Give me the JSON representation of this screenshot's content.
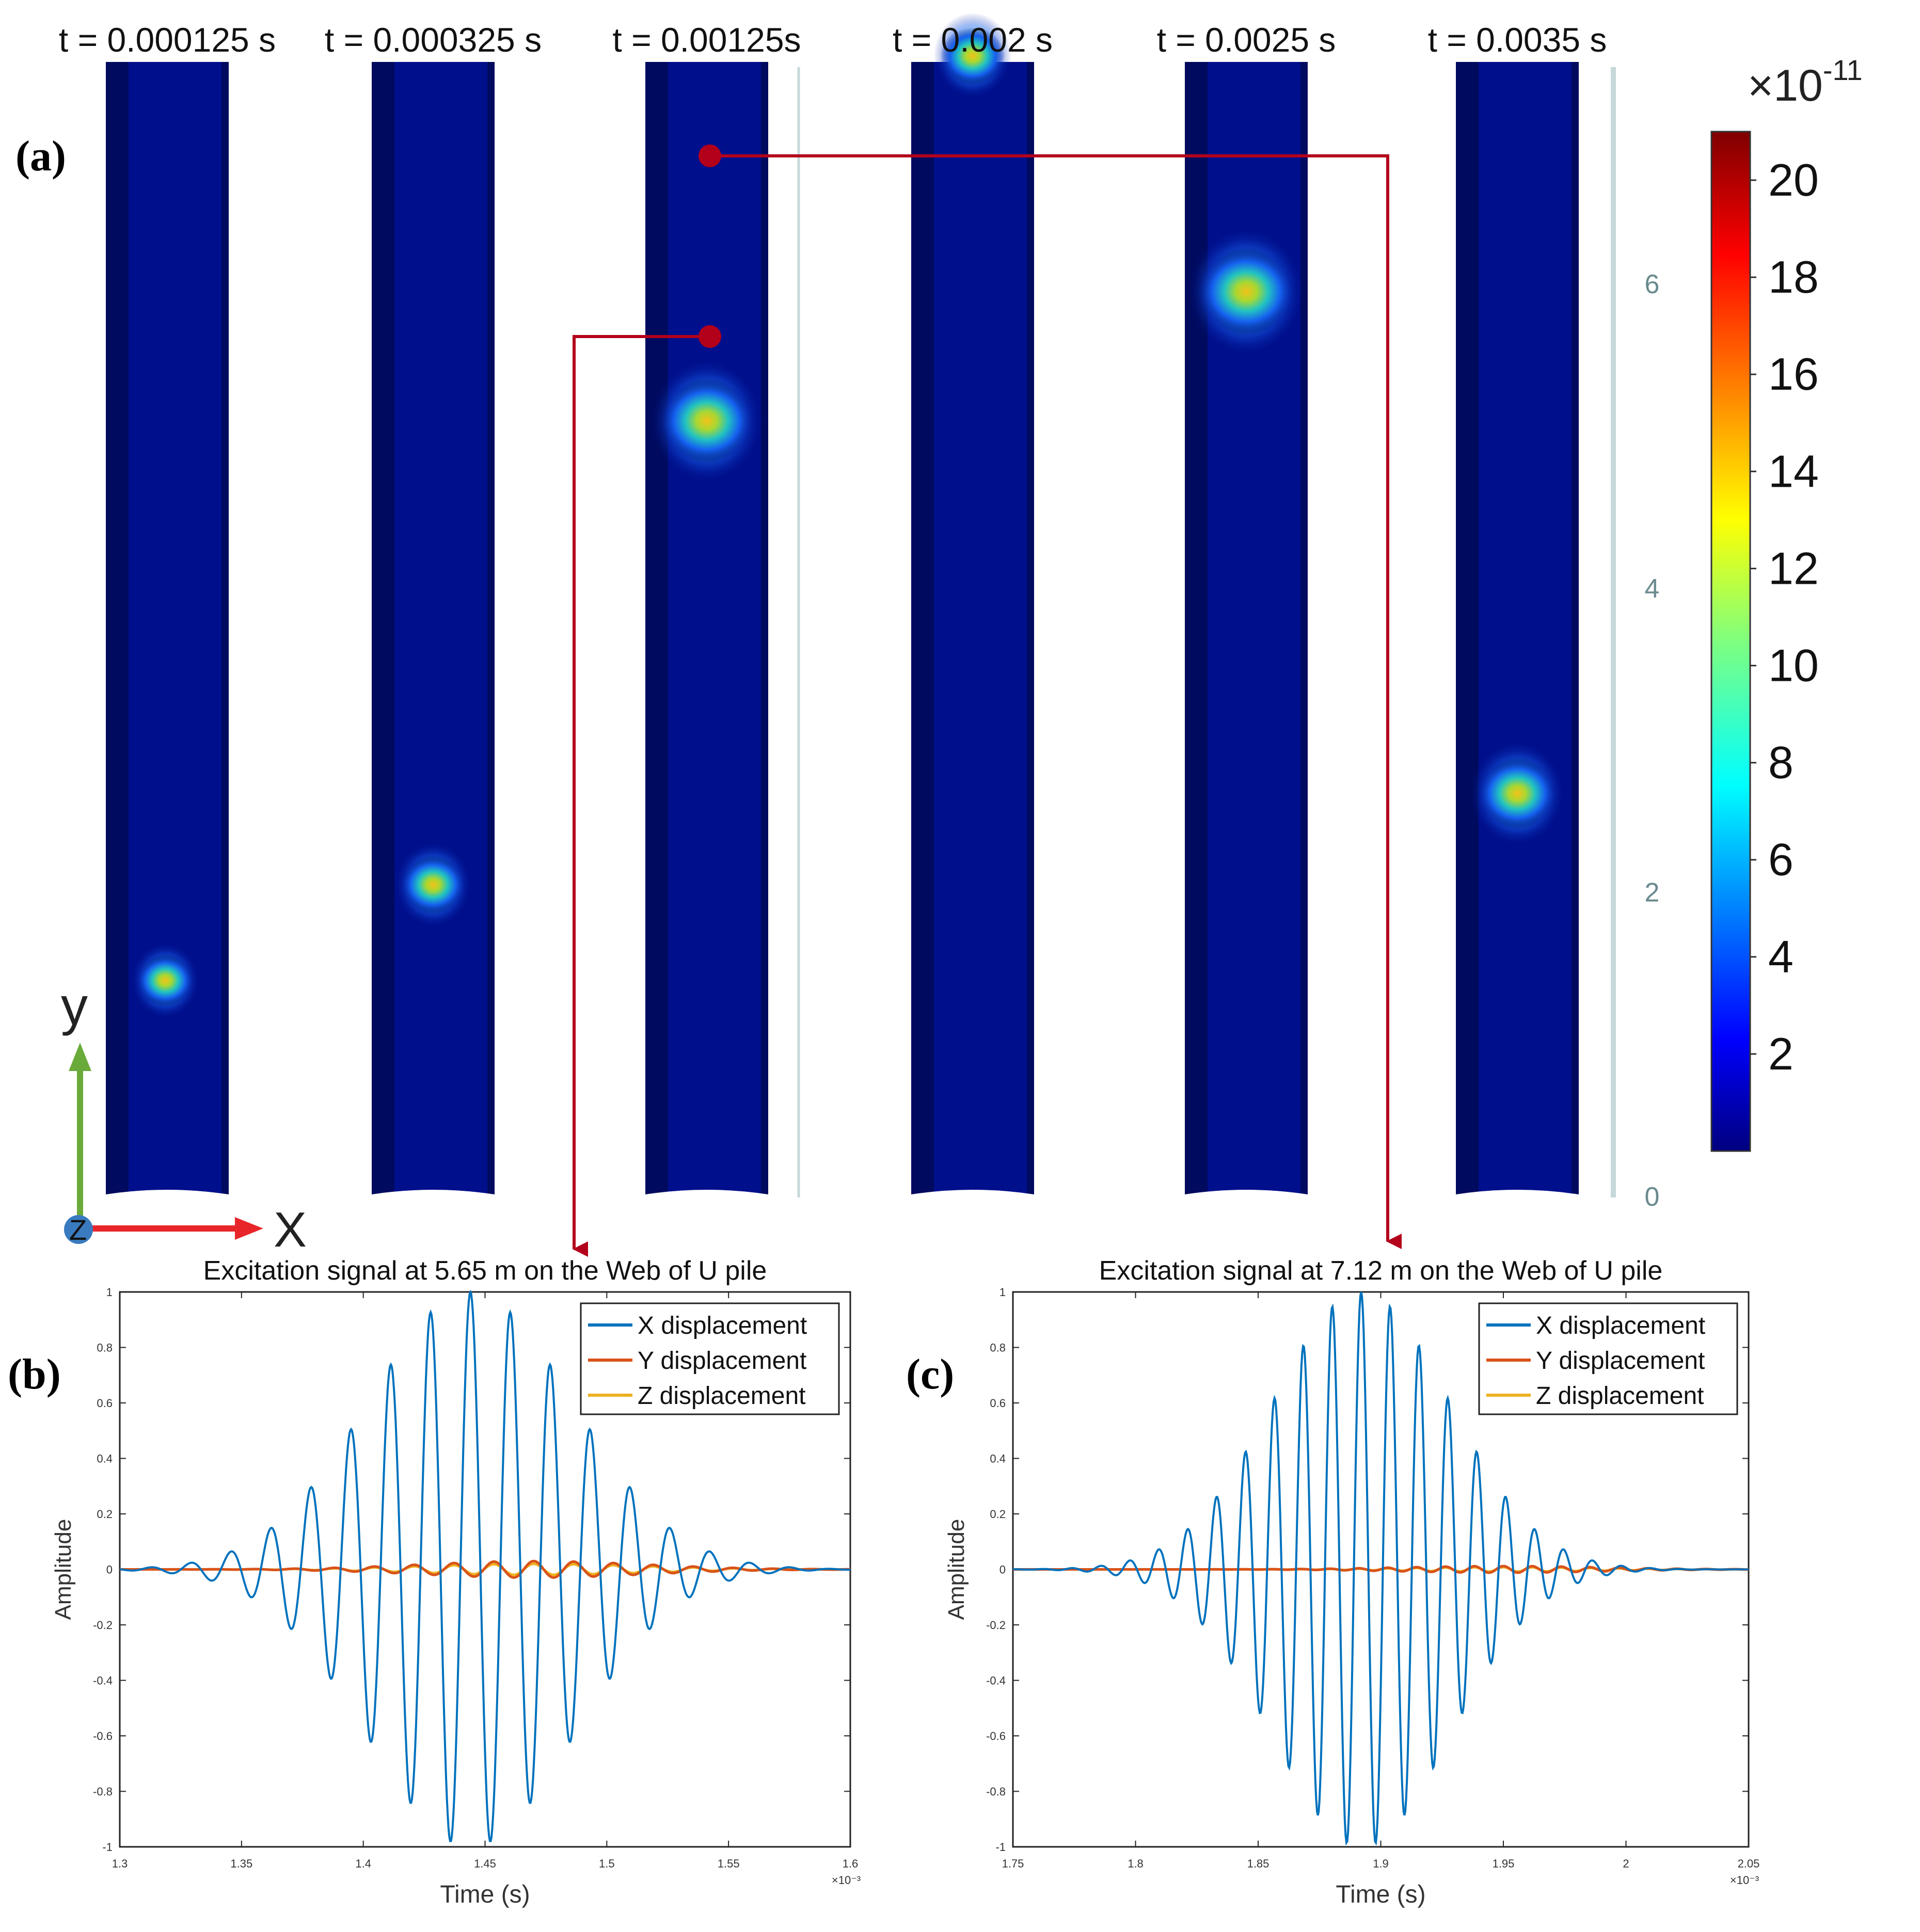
{
  "panel_labels": {
    "a": "(a)",
    "b": "(b)",
    "c": "(c)"
  },
  "snapshots": [
    {
      "time_label": "t = 0.000125 s",
      "spot_y_m": 1.42,
      "spot_scale": 0.8,
      "spot_peak": 12
    },
    {
      "time_label": "t = 0.000325 s",
      "spot_y_m": 2.05,
      "spot_scale": 0.9,
      "spot_peak": 12
    },
    {
      "time_label": "t = 0.00125s",
      "spot_y_m": 5.1,
      "spot_scale": 1.3,
      "spot_peak": 13
    },
    {
      "time_label": "t = 0.002 s",
      "spot_y_m": 7.5,
      "spot_scale": 0.9,
      "spot_peak": 13
    },
    {
      "time_label": "t = 0.0025 s",
      "spot_y_m": 5.95,
      "spot_scale": 1.35,
      "spot_peak": 13
    },
    {
      "time_label": "t = 0.0035 s",
      "spot_y_m": 2.65,
      "spot_scale": 1.1,
      "spot_peak": 12
    }
  ],
  "position_scale": {
    "ticks": [
      "0",
      "2",
      "4",
      "6"
    ],
    "values": [
      0,
      2,
      4,
      6
    ],
    "max": 7.45
  },
  "colorbar": {
    "exponent_label": "×10",
    "exponent_power": "-11",
    "ticks": [
      "2",
      "4",
      "6",
      "8",
      "10",
      "12",
      "14",
      "16",
      "18",
      "20"
    ],
    "values": [
      2,
      4,
      6,
      8,
      10,
      12,
      14,
      16,
      18,
      20
    ],
    "min": 0,
    "max": 21
  },
  "axes_triad": {
    "x": "X",
    "y": "y",
    "z": "Z"
  },
  "colors": {
    "background": "#000f8c",
    "arrow_red": "#b3001b",
    "x_series": "#0072bd",
    "y_series": "#d95319",
    "z_series": "#edb120",
    "triad_y": "#6aaa3a",
    "triad_x": "#e8262a",
    "triad_z": "#3a7bbf"
  },
  "chart_data": [
    {
      "type": "line",
      "title": "Excitation signal at 5.65 m on the Web of U pile",
      "xlabel": "Time (s)",
      "ylabel": "Amplitude",
      "x_multiplier": "×10⁻³",
      "xlim": [
        1.3,
        1.6
      ],
      "ylim": [
        -1,
        1
      ],
      "xticks": [
        1.3,
        1.35,
        1.4,
        1.45,
        1.5,
        1.55,
        1.6
      ],
      "xtick_labels": [
        "1.3",
        "1.35",
        "1.4",
        "1.45",
        "1.5",
        "1.55",
        "1.6"
      ],
      "yticks": [
        -1,
        -0.8,
        -0.6,
        -0.4,
        -0.2,
        0,
        0.2,
        0.4,
        0.6,
        0.8,
        1
      ],
      "ytick_labels": [
        "-1",
        "-0.8",
        "-0.6",
        "-0.4",
        "-0.2",
        "0",
        "0.2",
        "0.4",
        "0.6",
        "0.8",
        "1"
      ],
      "legend": [
        "X displacement",
        "Y displacement",
        "Z displacement"
      ],
      "legend_position": "top-right",
      "series": [
        {
          "name": "X displacement",
          "model": "tone_burst",
          "center": 1.444,
          "period": 0.0164,
          "sigma": 0.042,
          "amplitude": 1.0
        },
        {
          "name": "Y displacement",
          "model": "tone_burst",
          "center": 1.47,
          "period": 0.0164,
          "sigma": 0.045,
          "amplitude": 0.03
        },
        {
          "name": "Z displacement",
          "model": "tone_burst",
          "center": 1.47,
          "period": 0.0164,
          "sigma": 0.045,
          "amplitude": 0.02
        }
      ]
    },
    {
      "type": "line",
      "title": "Excitation signal at 7.12 m on the Web of U pile",
      "xlabel": "Time (s)",
      "ylabel": "Amplitude",
      "x_multiplier": "×10⁻³",
      "xlim": [
        1.75,
        2.05
      ],
      "ylim": [
        -1,
        1
      ],
      "xticks": [
        1.75,
        1.8,
        1.85,
        1.9,
        1.95,
        2.0,
        2.05
      ],
      "xtick_labels": [
        "1.75",
        "1.8",
        "1.85",
        "1.9",
        "1.95",
        "2",
        "2.05"
      ],
      "yticks": [
        -1,
        -0.8,
        -0.6,
        -0.4,
        -0.2,
        0,
        0.2,
        0.4,
        0.6,
        0.8,
        1
      ],
      "ytick_labels": [
        "-1",
        "-0.8",
        "-0.6",
        "-0.4",
        "-0.2",
        "0",
        "0.2",
        "0.4",
        "0.6",
        "0.8",
        "1"
      ],
      "legend": [
        "X displacement",
        "Y displacement",
        "Z displacement"
      ],
      "legend_position": "top-right",
      "series": [
        {
          "name": "X displacement",
          "model": "tone_burst",
          "center": 1.892,
          "period": 0.0118,
          "sigma": 0.036,
          "amplitude": 1.0
        },
        {
          "name": "Y displacement",
          "model": "tone_burst",
          "center": 1.95,
          "period": 0.0118,
          "sigma": 0.04,
          "amplitude": 0.012
        },
        {
          "name": "Z displacement",
          "model": "tone_burst",
          "center": 1.95,
          "period": 0.0118,
          "sigma": 0.04,
          "amplitude": 0.008
        }
      ]
    }
  ]
}
